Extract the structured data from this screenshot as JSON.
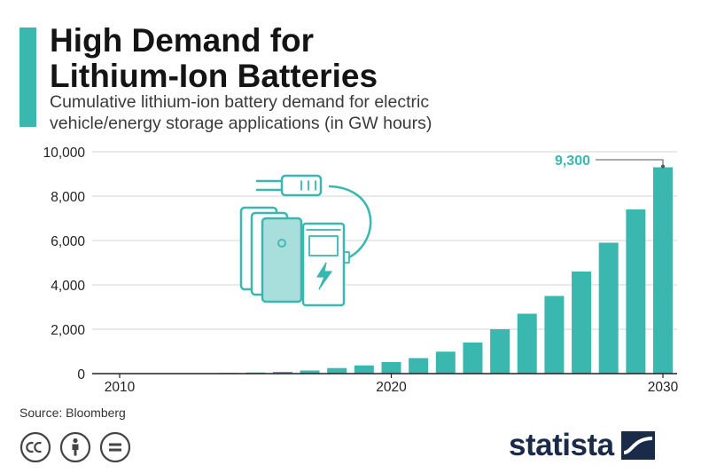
{
  "header": {
    "title_line1": "High Demand for",
    "title_line2": "Lithium-Ion Batteries",
    "subtitle_line1": "Cumulative lithium-ion battery demand for electric",
    "subtitle_line2": "vehicle/energy storage applications (in GW hours)"
  },
  "footer": {
    "source": "Source: Bloomberg",
    "brand": "statista",
    "license_icons": [
      "cc-icon",
      "by-icon",
      "nd-icon"
    ]
  },
  "colors": {
    "accent": "#3ab8b0",
    "bar": "#3ab8b0",
    "illustration_fill": "#a8dedb",
    "brand": "#1a2b4a"
  },
  "chart_data": {
    "type": "bar",
    "x": [
      2010,
      2011,
      2012,
      2013,
      2014,
      2015,
      2016,
      2017,
      2018,
      2019,
      2020,
      2021,
      2022,
      2023,
      2024,
      2025,
      2026,
      2027,
      2028,
      2029,
      2030
    ],
    "values": [
      5,
      8,
      12,
      18,
      30,
      50,
      80,
      140,
      250,
      370,
      520,
      700,
      990,
      1400,
      2000,
      2700,
      3500,
      4600,
      5900,
      7400,
      9300
    ],
    "xtick_labels": [
      "2010",
      "2020",
      "2030"
    ],
    "xtick_values": [
      2010,
      2020,
      2030
    ],
    "ytick_labels": [
      "0",
      "2,000",
      "4,000",
      "6,000",
      "8,000",
      "10,000"
    ],
    "yticks": [
      0,
      2000,
      4000,
      6000,
      8000,
      10000
    ],
    "ylim": [
      0,
      10000
    ],
    "annotation": {
      "x": 2030,
      "text": "9,300"
    },
    "grid": "horizontal",
    "xlabel": "",
    "ylabel": ""
  }
}
